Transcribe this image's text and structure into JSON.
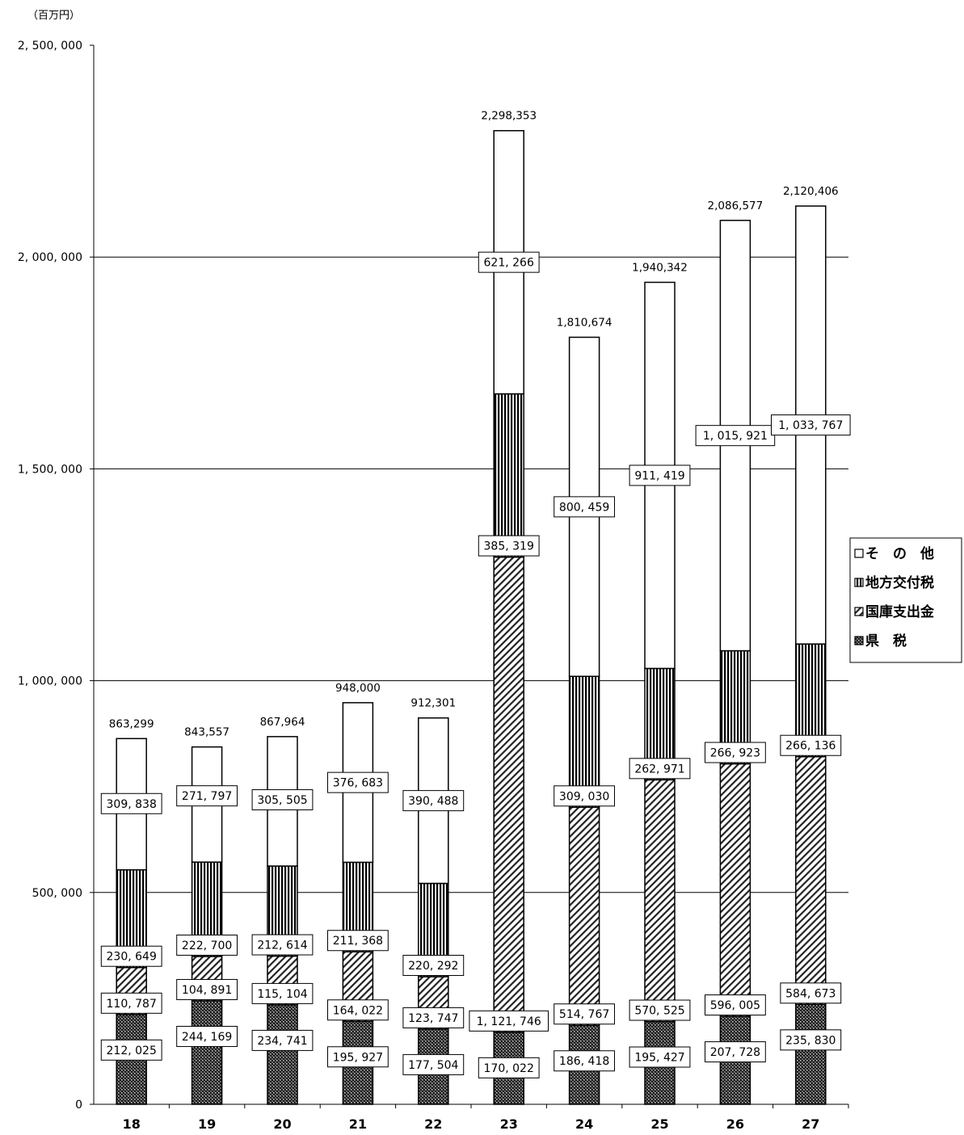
{
  "unit_label": "（百万円）",
  "chart_data": {
    "type": "bar",
    "stacked": true,
    "categories": [
      "18",
      "19",
      "20",
      "21",
      "22",
      "23",
      "24",
      "25",
      "26",
      "27"
    ],
    "series": [
      {
        "name": "県　税",
        "pattern": "dense-dots",
        "values": [
          212025,
          244169,
          234741,
          195927,
          177504,
          170022,
          186418,
          195427,
          207728,
          235830
        ],
        "labels": [
          "212, 025",
          "244, 169",
          "234, 741",
          "195, 927",
          "177, 504",
          "170, 022",
          "186, 418",
          "195, 427",
          "207, 728",
          "235, 830"
        ]
      },
      {
        "name": "国庫支出金",
        "pattern": "diagonal-hatch",
        "values": [
          110787,
          104891,
          115104,
          164022,
          123747,
          1121746,
          514767,
          570525,
          596005,
          584673
        ],
        "labels": [
          "110, 787",
          "104, 891",
          "115, 104",
          "164, 022",
          "123, 747",
          "1, 121, 746",
          "514, 767",
          "570, 525",
          "596, 005",
          "584, 673"
        ]
      },
      {
        "name": "地方交付税",
        "pattern": "vertical-stripes",
        "values": [
          230649,
          222700,
          212614,
          211368,
          220292,
          385319,
          309030,
          262971,
          266923,
          266136
        ],
        "labels": [
          "230, 649",
          "222, 700",
          "212, 614",
          "211, 368",
          "220, 292",
          "385, 319",
          "309, 030",
          "262, 971",
          "266, 923",
          "266, 136"
        ]
      },
      {
        "name": "そ　の　他",
        "pattern": "white",
        "values": [
          309838,
          271797,
          305505,
          376683,
          390488,
          621266,
          800459,
          911419,
          1015921,
          1033767
        ],
        "labels": [
          "309, 838",
          "271, 797",
          "305, 505",
          "376, 683",
          "390, 488",
          "621, 266",
          "800, 459",
          "911, 419",
          "1, 015, 921",
          "1, 033, 767"
        ]
      }
    ],
    "totals": [
      863299,
      843557,
      867964,
      948000,
      912301,
      2298353,
      1810674,
      1940342,
      2086577,
      2120406
    ],
    "total_labels": [
      "863,299",
      "843,557",
      "867,964",
      "948,000",
      "912,301",
      "2,298,353",
      "1,810,674",
      "1,940,342",
      "2,086,577",
      "2,120,406"
    ],
    "ylim": [
      0,
      2500000
    ],
    "yticks": [
      0,
      500000,
      1000000,
      1500000,
      2000000,
      2500000
    ],
    "ytick_labels": [
      "0",
      "500, 000",
      "1, 000, 000",
      "1, 500, 000",
      "2, 000, 000",
      "2, 500, 000"
    ],
    "grid": true,
    "legend_position": "right",
    "legend_order": [
      "そ　の　他",
      "地方交付税",
      "国庫支出金",
      "県　税"
    ],
    "colors": {
      "bar_stroke": "#000000",
      "grid": "#000000",
      "fill_white": "#ffffff"
    }
  }
}
